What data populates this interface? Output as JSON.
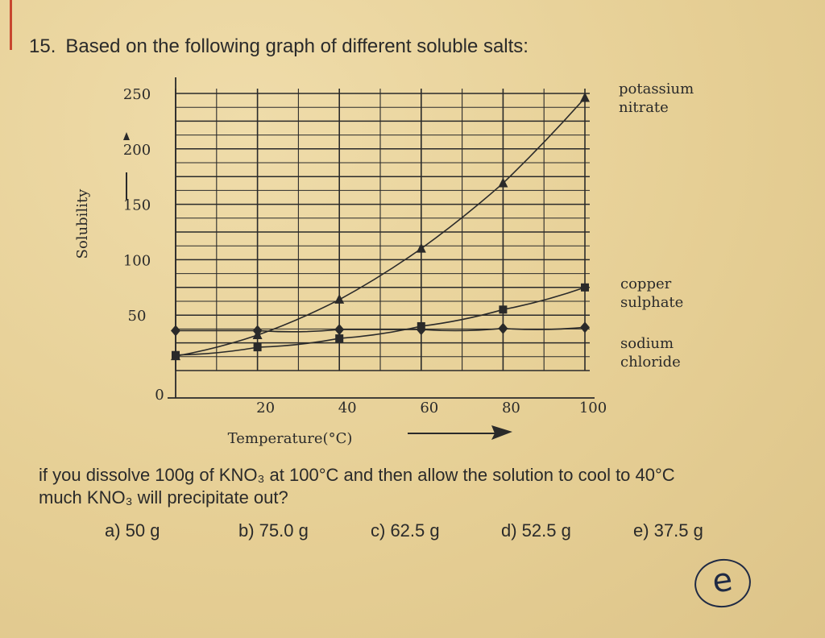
{
  "question": {
    "number": "15.",
    "title": "Based on the following graph of different soluble salts:",
    "line1": "if you dissolve 100g of KNO₃ at 100°C and then allow the solution to cool to 40°C",
    "line2": "much KNO₃ will precipitate out?",
    "options": [
      "a) 50 g",
      "b) 75.0 g",
      "c) 62.5 g",
      "d) 52.5 g",
      "e) 37.5 g"
    ],
    "handwritten_answer": "e"
  },
  "chart_data": {
    "type": "line",
    "title": "",
    "xlabel": "Temperature(°C)",
    "ylabel": "Solubility",
    "xlim": [
      0,
      100
    ],
    "ylim": [
      0,
      250
    ],
    "x_ticks": [
      "0",
      "20",
      "40",
      "60",
      "80",
      "100"
    ],
    "y_ticks": [
      "0",
      "50",
      "100",
      "150",
      "200",
      "250"
    ],
    "grid": true,
    "series": [
      {
        "name": "potassium nitrate",
        "marker": "triangle",
        "x": [
          0,
          20,
          40,
          60,
          80,
          100
        ],
        "y": [
          13,
          32,
          64,
          110,
          169,
          246
        ]
      },
      {
        "name": "copper sulphate",
        "marker": "square",
        "x": [
          0,
          20,
          40,
          60,
          80,
          100
        ],
        "y": [
          14,
          21,
          29,
          40,
          55,
          75
        ]
      },
      {
        "name": "sodium chloride",
        "marker": "diamond",
        "x": [
          0,
          20,
          40,
          60,
          80,
          100
        ],
        "y": [
          36,
          36,
          37,
          37,
          38,
          39
        ]
      }
    ],
    "colors": {
      "line": "#2a2a2a",
      "grid": "#2a2a2a"
    }
  }
}
